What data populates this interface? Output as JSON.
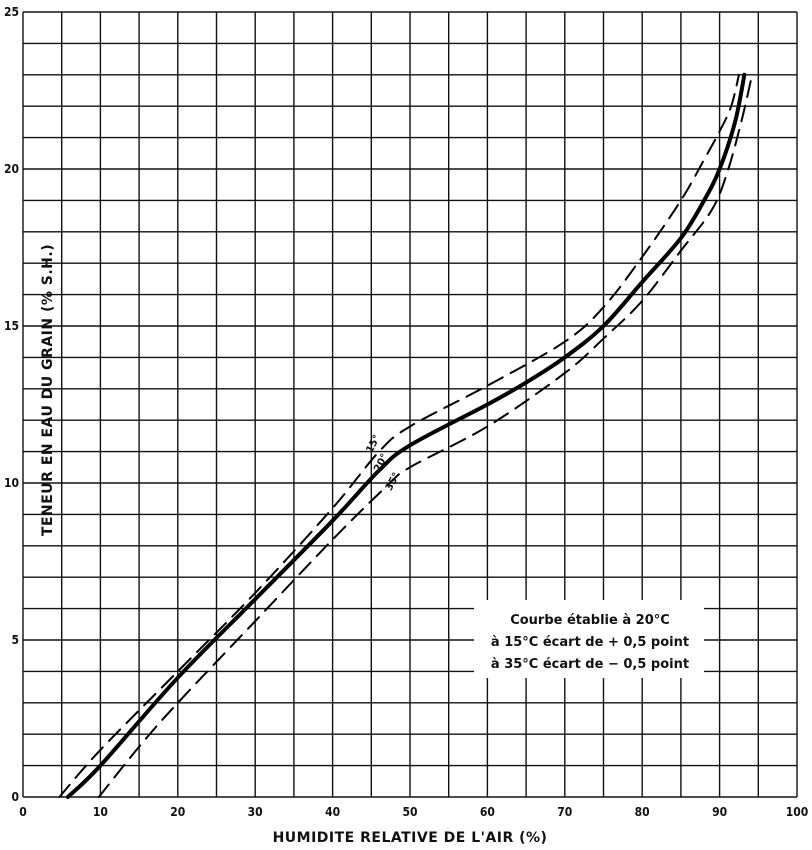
{
  "chart_data": {
    "type": "line",
    "xlabel": "HUMIDITE RELATIVE DE L'AIR (%)",
    "ylabel": "TENEUR EN EAU DU GRAIN (% S.H.)",
    "xlim": [
      0,
      100
    ],
    "ylim": [
      0,
      25
    ],
    "x_ticks": [
      "0",
      "10",
      "20",
      "30",
      "40",
      "50",
      "60",
      "70",
      "80",
      "90",
      "100"
    ],
    "y_ticks": [
      "0",
      "5",
      "10",
      "15",
      "20",
      "25"
    ],
    "grid": true,
    "annotation": [
      "Courbe établie à 20°C",
      "à 15°C écart de + 0,5 point",
      "à 35°C écart de − 0,5 point"
    ],
    "series": [
      {
        "name": "15°",
        "style": "dashed",
        "x": [
          4.7,
          10,
          20,
          30,
          40,
          46,
          50,
          60,
          70,
          75,
          80,
          85,
          88,
          90,
          91.5,
          92.5
        ],
        "y": [
          0,
          1.5,
          4,
          6.5,
          9.2,
          11,
          11.8,
          13.1,
          14.5,
          15.6,
          17.2,
          19.0,
          20.3,
          21.2,
          22.0,
          23.0
        ]
      },
      {
        "name": "20°",
        "style": "solid",
        "x": [
          5.8,
          10,
          20,
          30,
          40,
          46,
          50,
          60,
          65,
          70,
          75,
          80,
          85,
          88,
          90,
          92,
          93.2
        ],
        "y": [
          0,
          1.0,
          3.8,
          6.3,
          8.8,
          10.4,
          11.2,
          12.5,
          13.2,
          14.0,
          15.0,
          16.4,
          17.8,
          19.0,
          20.0,
          21.5,
          23.0
        ]
      },
      {
        "name": "35°",
        "style": "dashed",
        "x": [
          9.8,
          15,
          20,
          30,
          40,
          47,
          50,
          60,
          70,
          75,
          80,
          85,
          89,
          91,
          92.8,
          94.2
        ],
        "y": [
          0,
          1.6,
          3.0,
          5.6,
          8.2,
          9.9,
          10.5,
          11.8,
          13.5,
          14.6,
          15.8,
          17.4,
          18.7,
          19.9,
          21.5,
          23.0
        ]
      }
    ]
  }
}
